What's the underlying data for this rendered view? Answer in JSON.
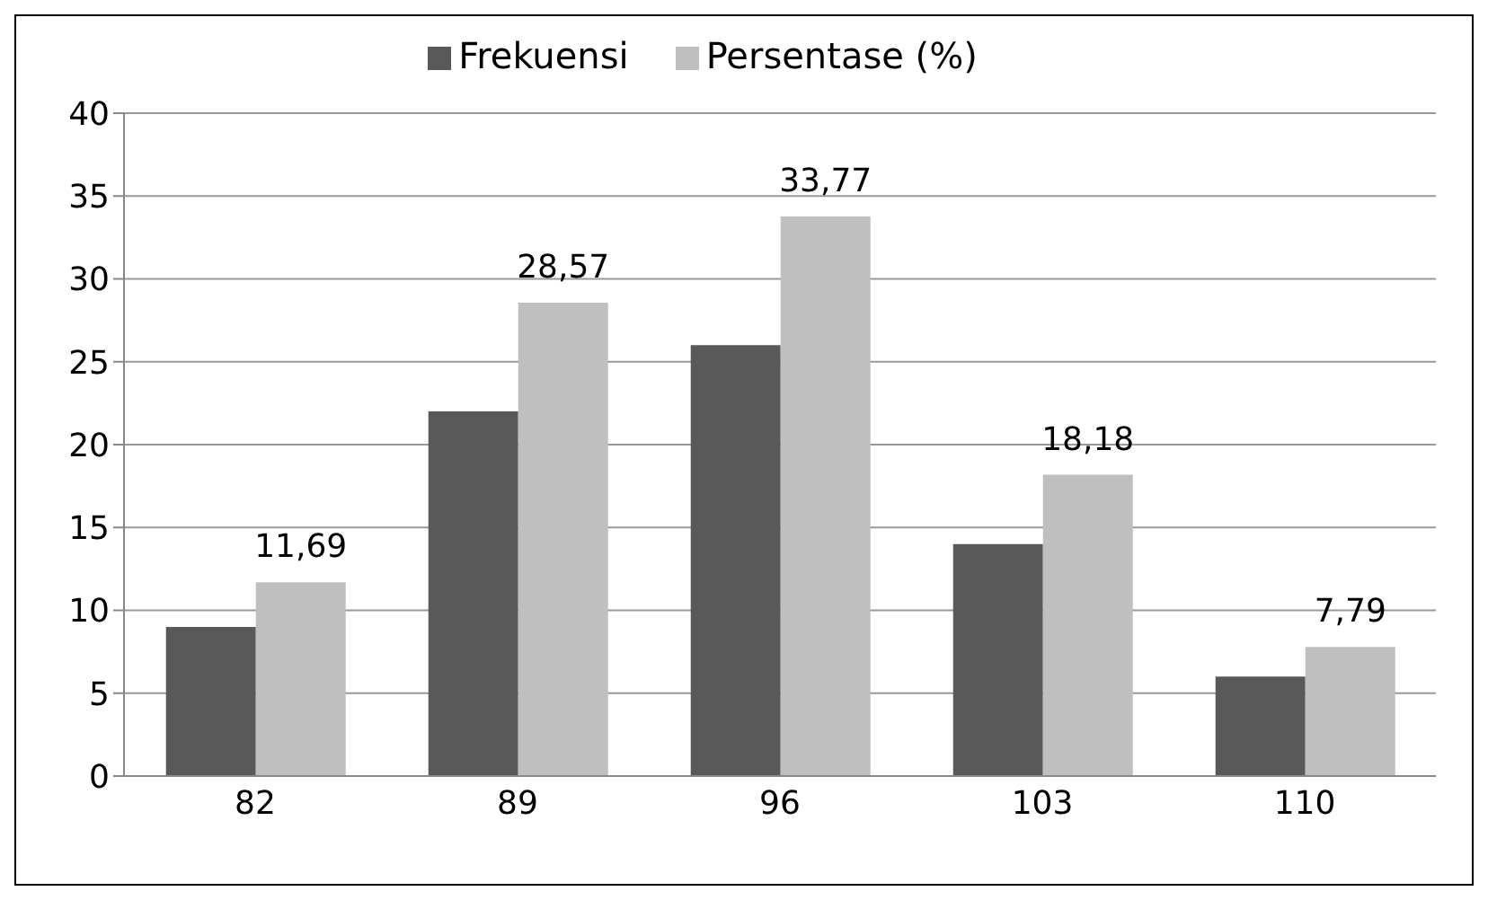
{
  "chart_data": {
    "type": "bar",
    "categories": [
      "82",
      "89",
      "96",
      "103",
      "110"
    ],
    "series": [
      {
        "name": "Frekuensi",
        "color": "#595959",
        "values": [
          9,
          22,
          26,
          14,
          6
        ]
      },
      {
        "name": "Persentase (%)",
        "color": "#bfbfbf",
        "values": [
          11.69,
          28.57,
          33.77,
          18.18,
          7.79
        ],
        "value_labels": [
          "11,69",
          "28,57",
          "33,77",
          "18,18",
          "7,79"
        ]
      }
    ],
    "ylim": [
      0,
      40
    ],
    "yticks": [
      0,
      5,
      10,
      15,
      20,
      25,
      30,
      35,
      40
    ],
    "grid": "y",
    "legend": "top"
  }
}
